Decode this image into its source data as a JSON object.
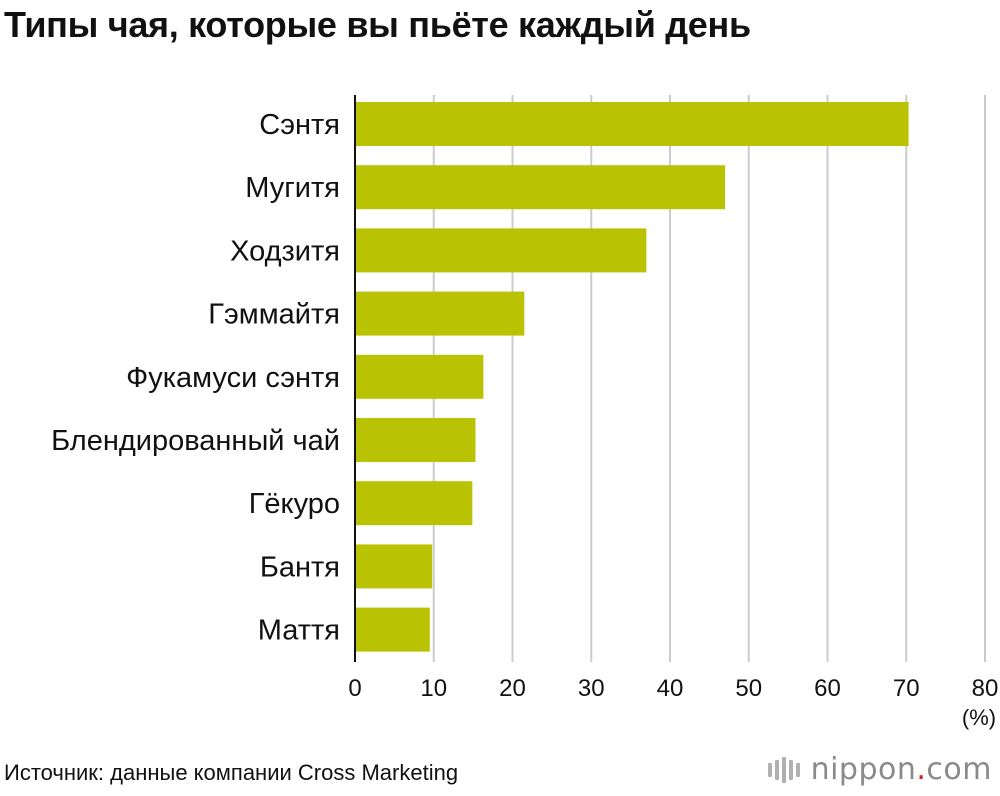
{
  "title": "Типы чая, которые вы пьёте каждый день",
  "source": "Источник: данные компании Cross Marketing",
  "logo": {
    "name": "nippon",
    "dot": ".",
    "tld": "com"
  },
  "colors": {
    "bar": "#bac303",
    "grid": "#cccccc",
    "axis": "#111111"
  },
  "chart_data": {
    "type": "bar",
    "orientation": "horizontal",
    "categories": [
      "Сэнтя",
      "Мугитя",
      "Ходзитя",
      "Гэммайтя",
      "Фукамуси сэнтя",
      "Блендированный чай",
      "Гёкуро",
      "Бантя",
      "Маття"
    ],
    "values": [
      70.3,
      47.0,
      37.0,
      21.5,
      16.3,
      15.3,
      14.9,
      9.8,
      9.5
    ],
    "xlim": [
      0,
      80
    ],
    "xticks": [
      "0",
      "10",
      "20",
      "30",
      "40",
      "50",
      "60",
      "70",
      "80"
    ],
    "xunit": "(%)",
    "grid": true,
    "legend": "none"
  }
}
